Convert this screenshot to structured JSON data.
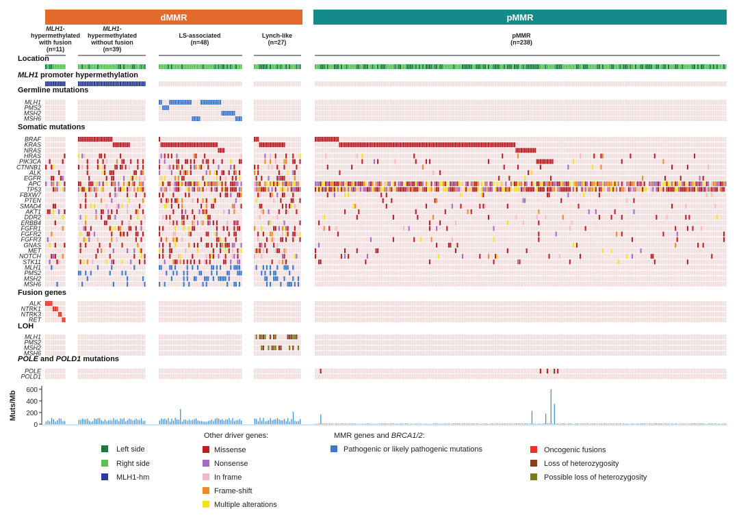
{
  "header": {
    "dmmr": "dMMR",
    "pmmr": "pMMR",
    "colors": {
      "dmmr": "#e4692c",
      "pmmr": "#148a8a"
    }
  },
  "groups": [
    {
      "line1": "MLH1-",
      "line2": "hypermethylated",
      "line3": "with fusion",
      "n": "(n=11)"
    },
    {
      "line1": "MLH1-",
      "line2": "hypermethylated",
      "line3": "without fusion",
      "n": "(n=39)"
    },
    {
      "line1": "",
      "line2": "",
      "line3": "LS-associated",
      "n": "(n=48)"
    },
    {
      "line1": "",
      "line2": "",
      "line3": "Lynch-like",
      "n": "(n=27)"
    },
    {
      "line1": "",
      "line2": "",
      "line3": "pMMR",
      "n": "(n=238)"
    }
  ],
  "sections": {
    "location": "Location",
    "hyper_prefix": "MLH1",
    "hyper_suffix": " promoter hypermethylation",
    "germline": "Germline mutations",
    "somatic": "Somatic mutations",
    "fusion": "Fusion genes",
    "loh": "LOH",
    "pole_a": "POLE",
    "pole_b": " and ",
    "pole_c": "POLD1",
    "pole_d": " mutations"
  },
  "genes": {
    "germline": [
      "MLH1",
      "PMS2",
      "MSH2",
      "MSH6"
    ],
    "somatic": [
      "BRAF",
      "KRAS",
      "NRAS",
      "HRAS",
      "PIK3CA",
      "CTNNB1",
      "ALK",
      "EGFR",
      "APC",
      "TP53",
      "FBXW7",
      "PTEN",
      "SMAD4",
      "AKT1",
      "DDR2",
      "ERBB4",
      "FGFR1",
      "FGFR2",
      "FGFR3",
      "GNAS",
      "MET",
      "NOTCH",
      "STK11",
      "MLH1",
      "PMS2",
      "MSH2",
      "MSH6"
    ],
    "fusion": [
      "ALK",
      "NTRK1",
      "NTRK3",
      "RET"
    ],
    "loh": [
      "MLH1",
      "PMS2",
      "MSH2",
      "MSH6"
    ],
    "pole": [
      "POLE",
      "POLD1"
    ]
  },
  "tmb_axis": {
    "label": "Muts/Mb",
    "ticks": [
      "0",
      "200",
      "400",
      "600"
    ],
    "range": [
      0,
      700
    ],
    "notable_values": [
      {
        "group": "LS-associated",
        "value": 260
      },
      {
        "group": "Lynch-like",
        "value": 210
      },
      {
        "group": "pMMR",
        "value": 170
      },
      {
        "group": "pMMR",
        "value": 230
      },
      {
        "group": "pMMR",
        "value": 600
      },
      {
        "group": "pMMR",
        "value": 350
      }
    ]
  },
  "legend": {
    "location_items": [
      {
        "label": "Left side",
        "color": "#1b7a3a"
      },
      {
        "label": "Right side",
        "color": "#5cbf5a"
      },
      {
        "label": "MLH1-hm",
        "color": "#2b3a9a"
      }
    ],
    "driver_title": "Other driver genes:",
    "driver_items": [
      {
        "label": "Missense",
        "color": "#b82025"
      },
      {
        "label": "Nonsense",
        "color": "#a56ac2"
      },
      {
        "label": "In frame",
        "color": "#f4b8c4"
      },
      {
        "label": "Frame-shift",
        "color": "#f08a24"
      },
      {
        "label": "Multiple alterations",
        "color": "#f2e21c"
      }
    ],
    "mmr_title_a": "MMR genes and ",
    "mmr_title_b": "BRCA1/2",
    "mmr_title_c": ":",
    "mmr_items": [
      {
        "label": "Pathogenic or likely pathogenic mutations",
        "color": "#3d78c9"
      }
    ],
    "other_items": [
      {
        "label": "Oncogenic fusions",
        "color": "#e8332b"
      },
      {
        "label": "Loss of heterozygosity",
        "color": "#8a3d1a"
      },
      {
        "label": "Possible loss of heterozygosity",
        "color": "#7b7d1c"
      }
    ]
  },
  "colors": {
    "grid": "#f1dcdc",
    "missense": "#b82025",
    "nonsense": "#a56ac2",
    "inframe": "#f4b8c4",
    "frameshift": "#f08a24",
    "multiple": "#f2e21c",
    "mmr": "#3d78c9",
    "fusion": "#e8332b",
    "loh": "#8a3d1a",
    "ploh": "#7b7d1c",
    "left": "#1b7a3a",
    "right": "#5cbf5a",
    "hm": "#2b3a9a",
    "tmb": "#3d8fd6"
  }
}
